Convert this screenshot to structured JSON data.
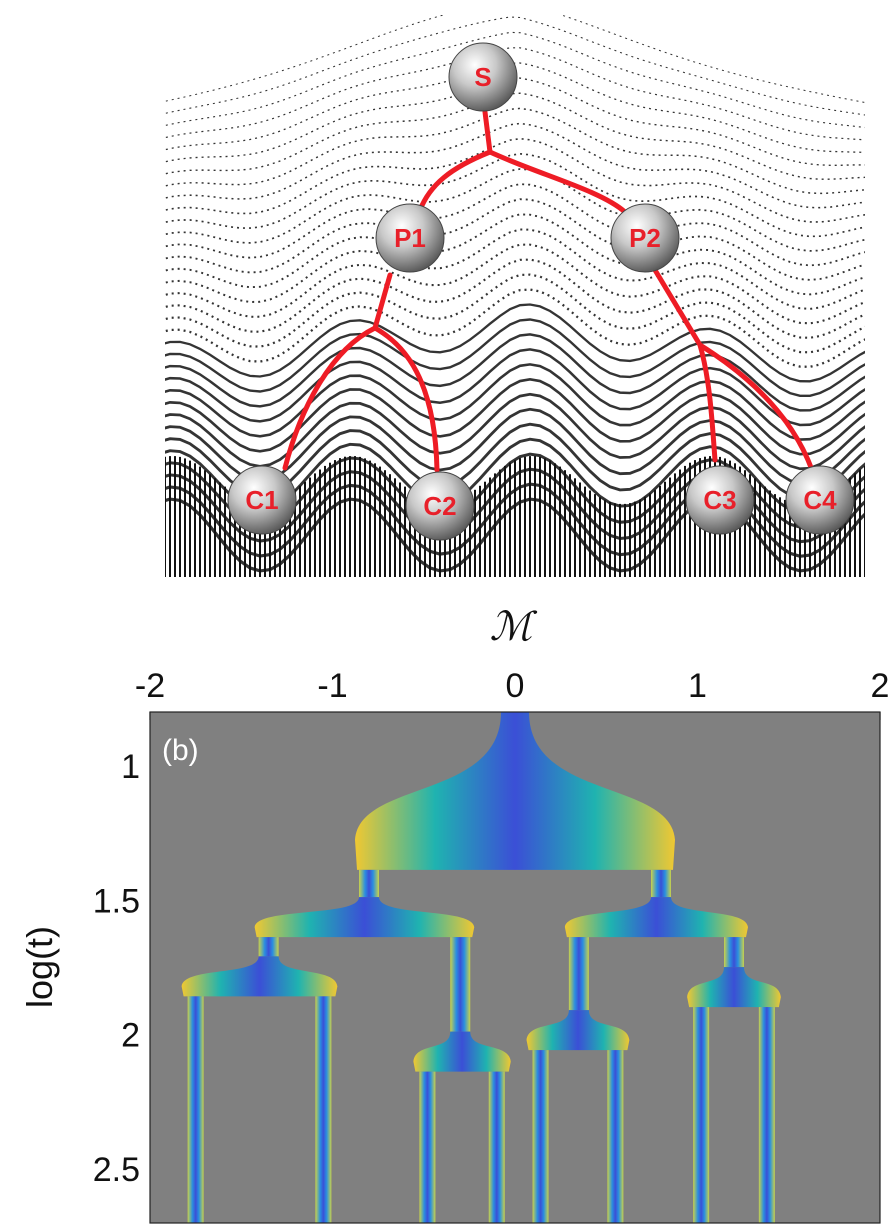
{
  "landscape": {
    "nodes": [
      {
        "id": "S",
        "label": "S"
      },
      {
        "id": "P1",
        "label": "P1"
      },
      {
        "id": "P2",
        "label": "P2"
      },
      {
        "id": "C1",
        "label": "C1"
      },
      {
        "id": "C2",
        "label": "C2"
      },
      {
        "id": "C3",
        "label": "C3"
      },
      {
        "id": "C4",
        "label": "C4"
      }
    ],
    "edges": [
      [
        "S",
        "P1"
      ],
      [
        "S",
        "P2"
      ],
      [
        "P1",
        "C1"
      ],
      [
        "P1",
        "C2"
      ],
      [
        "P2",
        "C3"
      ],
      [
        "P2",
        "C4"
      ]
    ]
  },
  "chart_data": {
    "type": "heatmap",
    "panel_label": "(b)",
    "xlabel": "M",
    "ylabel": "log(t)",
    "xlim": [
      -2,
      2
    ],
    "ylim": [
      0.8,
      2.7
    ],
    "y_inverted": true,
    "xticks": [
      -2,
      -1,
      0,
      1,
      2
    ],
    "xtick_labels": [
      "-2",
      "-1",
      "0",
      "1",
      "2"
    ],
    "yticks": [
      1,
      1.5,
      2,
      2.5
    ],
    "ytick_labels": [
      "1",
      "1.5",
      "2",
      "2.5"
    ],
    "x_axis_position": "top",
    "background": "#808080",
    "colormap": [
      "#3b4fd6",
      "#2a8fe0",
      "#1fb3b0",
      "#7cc76a",
      "#f0c832"
    ],
    "branches": [
      {
        "from": 0,
        "to": [
          -0.8,
          0.8
        ],
        "split_log_t": 1.35
      },
      {
        "from": -0.8,
        "to": [
          -1.35,
          -0.3
        ],
        "split_log_t": 1.6
      },
      {
        "from": 0.8,
        "to": [
          0.35,
          1.2
        ],
        "split_log_t": 1.6
      },
      {
        "from": -1.35,
        "to": [
          -1.75,
          -1.05
        ],
        "split_log_t": 1.82
      },
      {
        "from": -0.3,
        "to": [
          -0.48,
          -0.1
        ],
        "split_log_t": 2.1
      },
      {
        "from": 0.35,
        "to": [
          0.14,
          0.55
        ],
        "split_log_t": 2.02
      },
      {
        "from": 1.2,
        "to": [
          1.02,
          1.38
        ],
        "split_log_t": 1.86
      }
    ],
    "leaves": [
      -1.75,
      -1.05,
      -0.48,
      -0.1,
      0.14,
      0.55,
      1.02,
      1.38
    ],
    "leaf_end_log_t": 2.7
  }
}
